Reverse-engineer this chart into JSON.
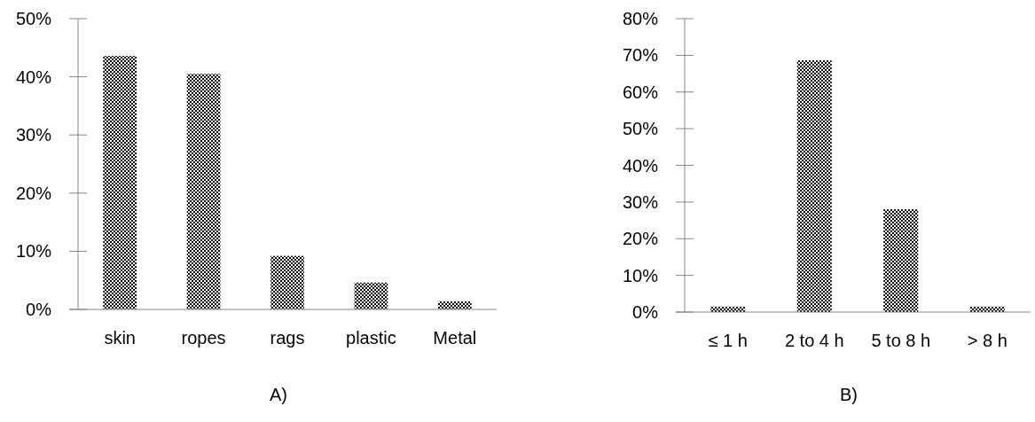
{
  "chart_data": [
    {
      "type": "bar",
      "xlabel": "A)",
      "categories": [
        "skin",
        "ropes",
        "rags",
        "plastic",
        "Metal"
      ],
      "values": [
        43.6,
        40.5,
        9.2,
        4.6,
        1.4
      ],
      "color": "#000000",
      "ylim": [
        0,
        50
      ],
      "yticks": [
        {
          "value": 0,
          "label": "0%"
        },
        {
          "value": 10,
          "label": "10%"
        },
        {
          "value": 20,
          "label": "20%"
        },
        {
          "value": 30,
          "label": "30%"
        },
        {
          "value": 40,
          "label": "40%"
        },
        {
          "value": 50,
          "label": "50%"
        }
      ],
      "grid": false
    },
    {
      "type": "bar",
      "xlabel": "B)",
      "categories": [
        "≤ 1 h",
        "2 to 4 h",
        "5 to 8 h",
        "> 8 h"
      ],
      "values": [
        1.5,
        68.6,
        28.0,
        1.5
      ],
      "color": "#000000",
      "ylim": [
        0,
        80
      ],
      "yticks": [
        {
          "value": 0,
          "label": "0%"
        },
        {
          "value": 10,
          "label": "10%"
        },
        {
          "value": 20,
          "label": "20%"
        },
        {
          "value": 30,
          "label": "30%"
        },
        {
          "value": 40,
          "label": "40%"
        },
        {
          "value": 50,
          "label": "50%"
        },
        {
          "value": 60,
          "label": "60%"
        },
        {
          "value": 70,
          "label": "70%"
        },
        {
          "value": 80,
          "label": "80%"
        }
      ],
      "grid": false
    }
  ]
}
